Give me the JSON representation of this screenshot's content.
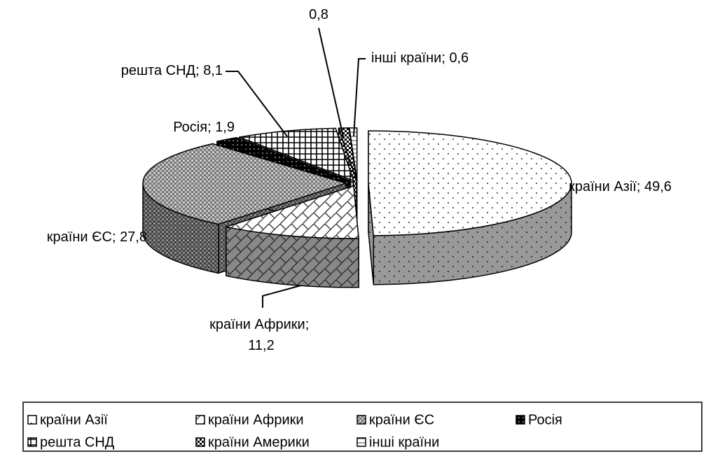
{
  "chart_data": {
    "type": "pie3d",
    "categories": [
      "країни Азії",
      "країни Африки",
      "країни ЄС",
      "Росія",
      "решта СНД",
      "країни Америки",
      "інші країни"
    ],
    "values": [
      49.6,
      11.2,
      27.8,
      1.9,
      8.1,
      0.8,
      0.6
    ],
    "value_labels": [
      "49,6",
      "11,2",
      "27,8",
      "1,9",
      "8,1",
      "0,8",
      "0,6"
    ],
    "label_separator": "; ",
    "show_category_in_label": [
      true,
      true,
      true,
      true,
      true,
      false,
      true
    ],
    "legend": "bottom"
  }
}
